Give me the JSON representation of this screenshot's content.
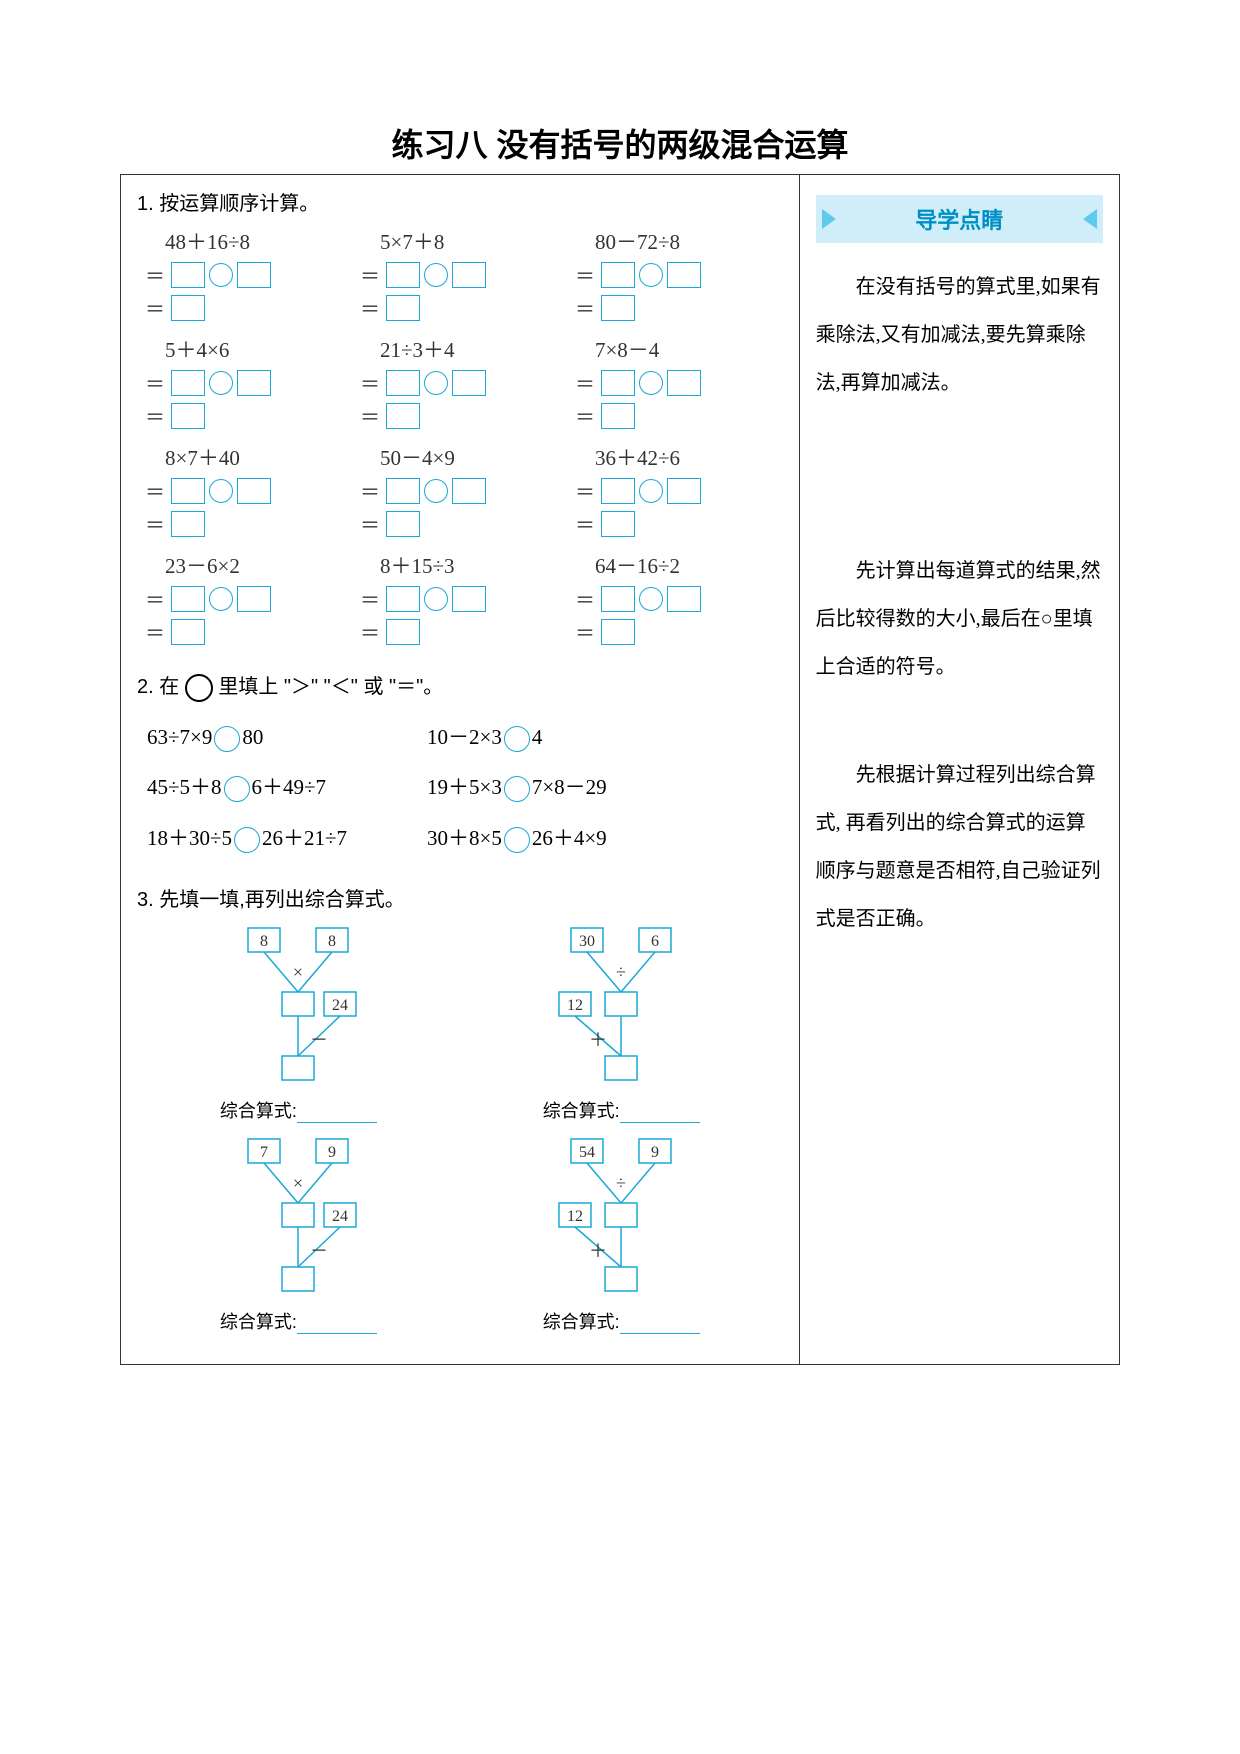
{
  "title": "练习八  没有括号的两级混合运算",
  "colors": {
    "accent": "#1ba8d6",
    "banner_bg": "#cfeefa",
    "banner_text": "#008fc4",
    "text": "#333333",
    "border": "#333333"
  },
  "q1": {
    "heading": "1. 按运算顺序计算。",
    "problems": [
      "48＋16÷8",
      "5×7＋8",
      "80－72÷8",
      "5＋4×6",
      "21÷3＋4",
      "7×8－4",
      "8×7＋40",
      "50－4×9",
      "36＋42÷6",
      "23－6×2",
      "8＋15÷3",
      "64－16÷2"
    ]
  },
  "q2": {
    "heading_prefix": "2. 在",
    "heading_suffix": "里填上 \"＞\" \"＜\" 或 \"＝\"。",
    "rows": [
      [
        "63÷7×9",
        "80",
        "10－2×3",
        "4"
      ],
      [
        "45÷5＋8",
        "6＋49÷7",
        "19＋5×3",
        "7×8－29"
      ],
      [
        "18＋30÷5",
        "26＋21÷7",
        "30＋8×5",
        "26＋4×9"
      ]
    ]
  },
  "q3": {
    "heading": "3. 先填一填,再列出综合算式。",
    "label": "综合算式:",
    "diagrams": [
      {
        "a": "8",
        "b": "8",
        "op1": "×",
        "c": "24",
        "op2": "－"
      },
      {
        "a": "30",
        "b": "6",
        "op1": "÷",
        "c": "12",
        "op2": "＋",
        "c_left": true
      },
      {
        "a": "7",
        "b": "9",
        "op1": "×",
        "c": "24",
        "op2": "－"
      },
      {
        "a": "54",
        "b": "9",
        "op1": "÷",
        "c": "12",
        "op2": "＋",
        "c_left": true
      }
    ]
  },
  "tips": {
    "banner": "导学点睛",
    "tip1": "在没有括号的算式里,如果有乘除法,又有加减法,要先算乘除法,再算加减法。",
    "tip2": "先计算出每道算式的结果,然后比较得数的大小,最后在○里填上合适的符号。",
    "tip3": "先根据计算过程列出综合算式, 再看列出的综合算式的运算顺序与题意是否相符,自己验证列式是否正确。"
  }
}
